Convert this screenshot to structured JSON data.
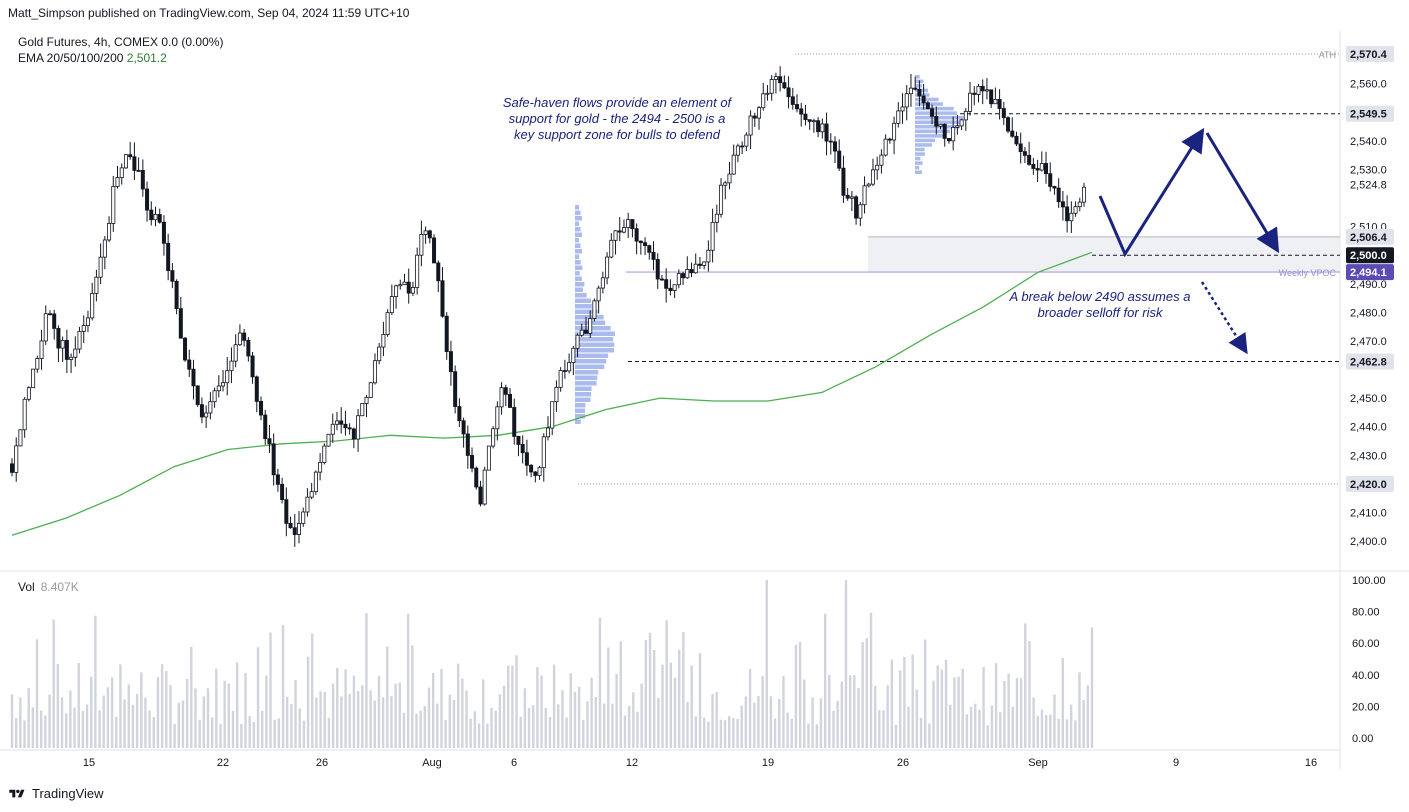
{
  "header": {
    "published": "Matt_Simpson published on TradingView.com, Sep 04, 2024 11:59 UTC+10"
  },
  "legend": {
    "symbol": "Gold Futures, 4h, COMEX",
    "change": "0.0 (0.00%)",
    "ema_label": "EMA 20/50/100/200",
    "ema_value": "2,501.2"
  },
  "volume": {
    "label": "Vol",
    "value": "8.407K"
  },
  "footer": {
    "brand": "TradingView"
  },
  "annotations": {
    "support_note": [
      "Safe-haven flows provide an element of",
      "support for gold - the 2494 - 2500 is a",
      "key support zone for bulls to defend"
    ],
    "break_note": [
      "A break below 2490 assumes a",
      "broader selloff for risk"
    ]
  },
  "colors": {
    "up": "#089981",
    "candle": "#131722",
    "ema": "#4caf50",
    "annotation": "#1a237e",
    "vpoc": "#6a5acd",
    "volume_bar": "#d1d4dc",
    "profile": "#90a4e8"
  },
  "chart_data": [
    {
      "type": "line",
      "title": "Gold Futures, 4h, COMEX",
      "x_tick_labels": [
        "15",
        "22",
        "26",
        "Aug",
        "6",
        "12",
        "19",
        "26",
        "Sep",
        "9",
        "16"
      ],
      "y_tick_labels": [
        "2,570.4",
        "2,560.0",
        "2,549.5",
        "2,540.0",
        "2,530.0",
        "2,524.8",
        "2,510.0",
        "2,506.4",
        "2,500.0",
        "2,494.1",
        "2,490.0",
        "2,480.0",
        "2,470.0",
        "2,462.8",
        "2,450.0",
        "2,440.0",
        "2,430.0",
        "2,420.0",
        "2,410.0",
        "2,400.0"
      ],
      "ylim": [
        2397,
        2574
      ],
      "levels": [
        {
          "label": "ATH",
          "value": 2570.4,
          "style": "dotted"
        },
        {
          "label": "",
          "value": 2549.5,
          "style": "dashed"
        },
        {
          "label": "",
          "value": 2506.4,
          "style": "solid-light"
        },
        {
          "label": "",
          "value": 2500.0,
          "style": "dashed"
        },
        {
          "label": "Weekly VPOC",
          "value": 2494.1,
          "style": "solid-purple"
        },
        {
          "label": "",
          "value": 2462.8,
          "style": "dashed"
        },
        {
          "label": "",
          "value": 2420.0,
          "style": "dotted"
        }
      ],
      "price_path": [
        2427,
        2446,
        2462,
        2480,
        2470,
        2465,
        2472,
        2485,
        2500,
        2525,
        2536,
        2530,
        2515,
        2510,
        2490,
        2468,
        2450,
        2443,
        2452,
        2460,
        2475,
        2458,
        2442,
        2425,
        2407,
        2404,
        2415,
        2430,
        2440,
        2442,
        2436,
        2450,
        2465,
        2480,
        2491,
        2485,
        2510,
        2500,
        2470,
        2446,
        2430,
        2412,
        2436,
        2452,
        2440,
        2425,
        2423,
        2442,
        2460,
        2465,
        2472,
        2482,
        2497,
        2508,
        2515,
        2505,
        2498,
        2490,
        2488,
        2496,
        2495,
        2503,
        2520,
        2530,
        2540,
        2548,
        2555,
        2565,
        2558,
        2552,
        2546,
        2545,
        2540,
        2522,
        2515,
        2525,
        2535,
        2540,
        2553,
        2560,
        2553,
        2548,
        2542,
        2548,
        2555,
        2558,
        2555,
        2549,
        2538,
        2532,
        2532,
        2526,
        2516,
        2514,
        2525
      ],
      "ema200_path": [
        2402,
        2408,
        2416,
        2426,
        2432,
        2434,
        2435,
        2437,
        2436,
        2437,
        2440,
        2446,
        2450,
        2449,
        2449,
        2452,
        2461,
        2472,
        2482,
        2494,
        2501
      ],
      "volume": {
        "ylim": [
          0,
          100
        ],
        "y_tick_labels": [
          "100.00",
          "80.00",
          "60.00",
          "40.00",
          "20.00",
          "0.00"
        ]
      }
    }
  ]
}
